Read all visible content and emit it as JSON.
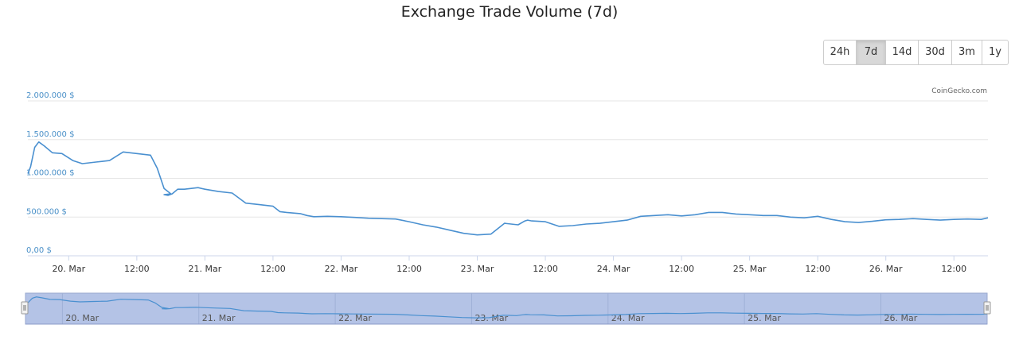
{
  "chart_data": {
    "type": "area",
    "title": "Exchange Trade Volume (7d)",
    "credit": "CoinGecko.com",
    "y_ticks": [
      "0,00 $",
      "500.000 $",
      "1.000.000 $",
      "1.500.000 $",
      "2.000.000 $"
    ],
    "y_tick_values": [
      0,
      500000,
      1000000,
      1500000,
      2000000
    ],
    "ylim": [
      0,
      2000000
    ],
    "xlim": [
      0,
      7.05
    ],
    "x_ticks": [
      "20. Mar",
      "12:00",
      "21. Mar",
      "12:00",
      "22. Mar",
      "12:00",
      "23. Mar",
      "12:00",
      "24. Mar",
      "12:00",
      "25. Mar",
      "12:00",
      "26. Mar",
      "12:00"
    ],
    "x_tick_values": [
      0.3,
      0.8,
      1.3,
      1.8,
      2.3,
      2.8,
      3.3,
      3.8,
      4.3,
      4.8,
      5.3,
      5.8,
      6.3,
      6.8
    ],
    "navigator_labels": [
      "20. Mar",
      "21. Mar",
      "22. Mar",
      "23. Mar",
      "24. Mar",
      "25. Mar",
      "26. Mar"
    ],
    "navigator_label_values": [
      0.3,
      1.3,
      2.3,
      3.3,
      4.3,
      5.3,
      6.3
    ],
    "grid": true,
    "legend": "none",
    "line_color": "#4a90d0",
    "series": [
      {
        "x": [
          0.0,
          0.02,
          0.05,
          0.08,
          0.12,
          0.18,
          0.25,
          0.33,
          0.4,
          0.5,
          0.55,
          0.6,
          0.7,
          0.8,
          0.9,
          0.95,
          1.0,
          1.05,
          1.0,
          1.03,
          1.06,
          1.1,
          1.15,
          1.2,
          1.25,
          1.3,
          1.4,
          1.5,
          1.6,
          1.7,
          1.8,
          1.85,
          1.9,
          2.0,
          2.05,
          2.1,
          2.2,
          2.3,
          2.4,
          2.5,
          2.6,
          2.7,
          2.8,
          2.9,
          3.0,
          3.1,
          3.2,
          3.3,
          3.4,
          3.5,
          3.6,
          3.65,
          3.67,
          3.7,
          3.8,
          3.9,
          4.0,
          4.1,
          4.2,
          4.3,
          4.4,
          4.5,
          4.6,
          4.7,
          4.8,
          4.9,
          5.0,
          5.1,
          5.2,
          5.3,
          5.4,
          5.5,
          5.6,
          5.7,
          5.8,
          5.9,
          6.0,
          6.1,
          6.2,
          6.3,
          6.4,
          6.5,
          6.6,
          6.7,
          6.8,
          6.9,
          7.0,
          7.05
        ],
        "y": [
          1060000,
          1150000,
          1400000,
          1470000,
          1420000,
          1330000,
          1320000,
          1230000,
          1190000,
          1210000,
          1220000,
          1230000,
          1340000,
          1320000,
          1300000,
          1130000,
          870000,
          800000,
          790000,
          780000,
          800000,
          860000,
          860000,
          870000,
          880000,
          860000,
          830000,
          810000,
          680000,
          660000,
          640000,
          570000,
          560000,
          545000,
          520000,
          505000,
          510000,
          505000,
          495000,
          485000,
          480000,
          475000,
          440000,
          400000,
          370000,
          330000,
          290000,
          270000,
          280000,
          420000,
          400000,
          450000,
          460000,
          450000,
          440000,
          380000,
          390000,
          410000,
          420000,
          440000,
          460000,
          510000,
          520000,
          530000,
          515000,
          530000,
          560000,
          560000,
          540000,
          530000,
          520000,
          520000,
          500000,
          490000,
          510000,
          470000,
          440000,
          430000,
          445000,
          465000,
          470000,
          480000,
          470000,
          460000,
          470000,
          475000,
          470000,
          490000
        ]
      }
    ]
  },
  "range_selector": {
    "buttons": [
      "24h",
      "7d",
      "14d",
      "30d",
      "3m",
      "1y"
    ],
    "selected": "7d"
  }
}
